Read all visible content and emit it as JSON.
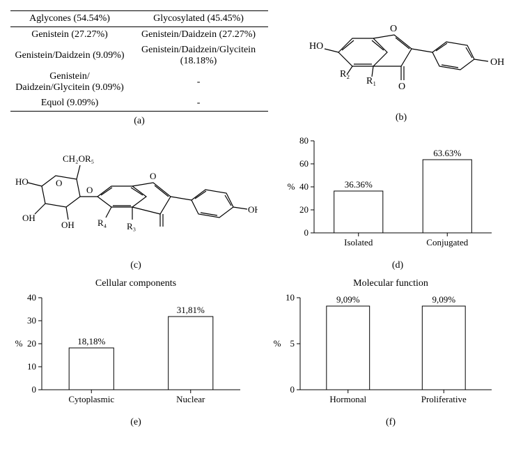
{
  "table": {
    "header": [
      "Aglycones (54.54%)",
      "Glycosylated (45.45%)"
    ],
    "rows": [
      [
        "Genistein (27.27%)",
        "Genistein/Daidzein (27.27%)"
      ],
      [
        "Genistein/Daidzein (9.09%)",
        "Genistein/Daidzein/Glycitein (18.18%)"
      ],
      [
        "Genistein/ Daidzein/Glycitein (9.09%)",
        "-"
      ],
      [
        "Equol (9.09%)",
        "-"
      ]
    ]
  },
  "captions": {
    "a": "(a)",
    "b": "(b)",
    "c": "(c)",
    "d": "(d)",
    "e": "(e)",
    "f": "(f)"
  },
  "molecule_b": {
    "labels": [
      "HO",
      "O",
      "OH",
      "O",
      "R₂",
      "R₁"
    ]
  },
  "molecule_c": {
    "labels": [
      "CH₂OR₅",
      "O",
      "HO",
      "OH",
      "OH",
      "O",
      "O",
      "OH",
      "R₄",
      "R₃"
    ]
  },
  "chart_d": {
    "type": "bar",
    "ylabel": "%",
    "ylim": [
      0,
      80
    ],
    "ytick_step": 20,
    "categories": [
      "Isolated",
      "Conjugated"
    ],
    "values": [
      36.36,
      63.63
    ],
    "value_labels": [
      "36.36%",
      "63.63%"
    ],
    "bar_fill": "#ffffff",
    "bar_stroke": "#000000",
    "background_color": "#ffffff",
    "bar_width": 0.55,
    "label_fontsize": 13
  },
  "chart_e": {
    "type": "bar",
    "title": "Cellular components",
    "ylabel": "%",
    "ylim": [
      0,
      40
    ],
    "ytick_step": 10,
    "categories": [
      "Cytoplasmic",
      "Nuclear"
    ],
    "values": [
      18.18,
      31.81
    ],
    "value_labels": [
      "18,18%",
      "31,81%"
    ],
    "bar_fill": "#ffffff",
    "bar_stroke": "#000000",
    "background_color": "#ffffff",
    "bar_width": 0.45,
    "label_fontsize": 13
  },
  "chart_f": {
    "type": "bar",
    "title": "Molecular function",
    "ylabel": "%",
    "ylim": [
      0,
      10
    ],
    "ytick_step": 5,
    "categories": [
      "Hormonal",
      "Proliferative"
    ],
    "values": [
      9.09,
      9.09
    ],
    "value_labels": [
      "9,09%",
      "9,09%"
    ],
    "bar_fill": "#ffffff",
    "bar_stroke": "#000000",
    "background_color": "#ffffff",
    "bar_width": 0.45,
    "label_fontsize": 13
  }
}
